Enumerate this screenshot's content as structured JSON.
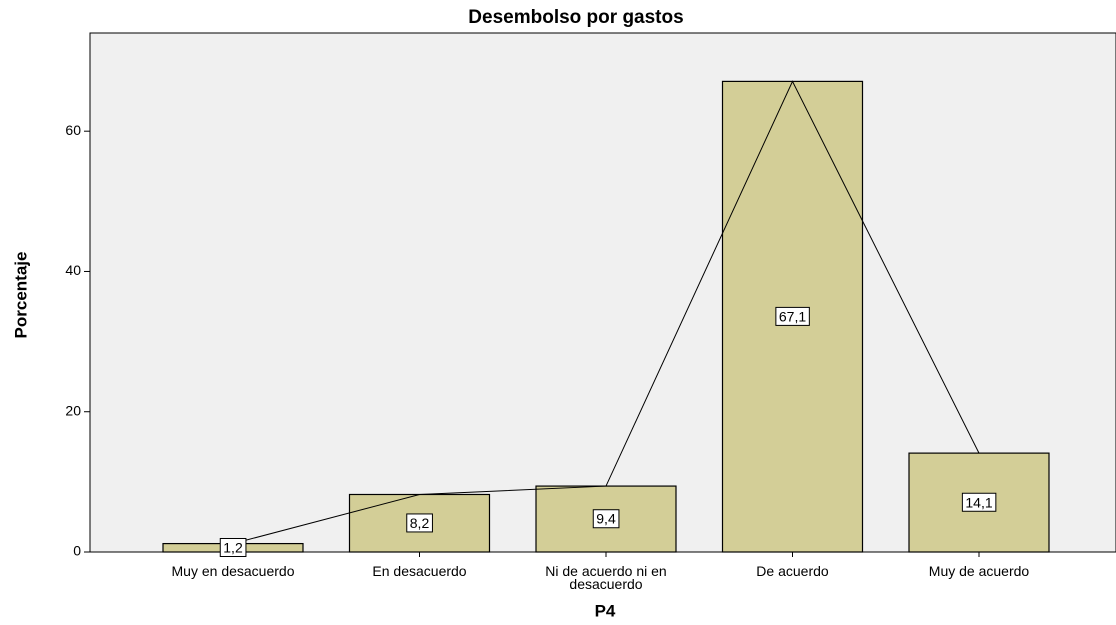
{
  "chart_data": {
    "type": "bar",
    "title": "Desembolso por gastos",
    "x_label": "P4",
    "y_label": "Porcentaje",
    "categories": [
      "Muy en desacuerdo",
      "En desacuerdo",
      "Ni de acuerdo ni en desacuerdo",
      "De acuerdo",
      "Muy de acuerdo"
    ],
    "values": [
      1.2,
      8.2,
      9.4,
      67.1,
      14.1
    ],
    "value_labels": [
      "1,2",
      "8,2",
      "9,4",
      "67,1",
      "14,1"
    ],
    "color": "#d3ce97",
    "line_color": "#000000",
    "background": "#f0f0f0",
    "ylim": [
      0,
      74
    ],
    "yticks": [
      0,
      20,
      40,
      60
    ],
    "grid": false
  }
}
